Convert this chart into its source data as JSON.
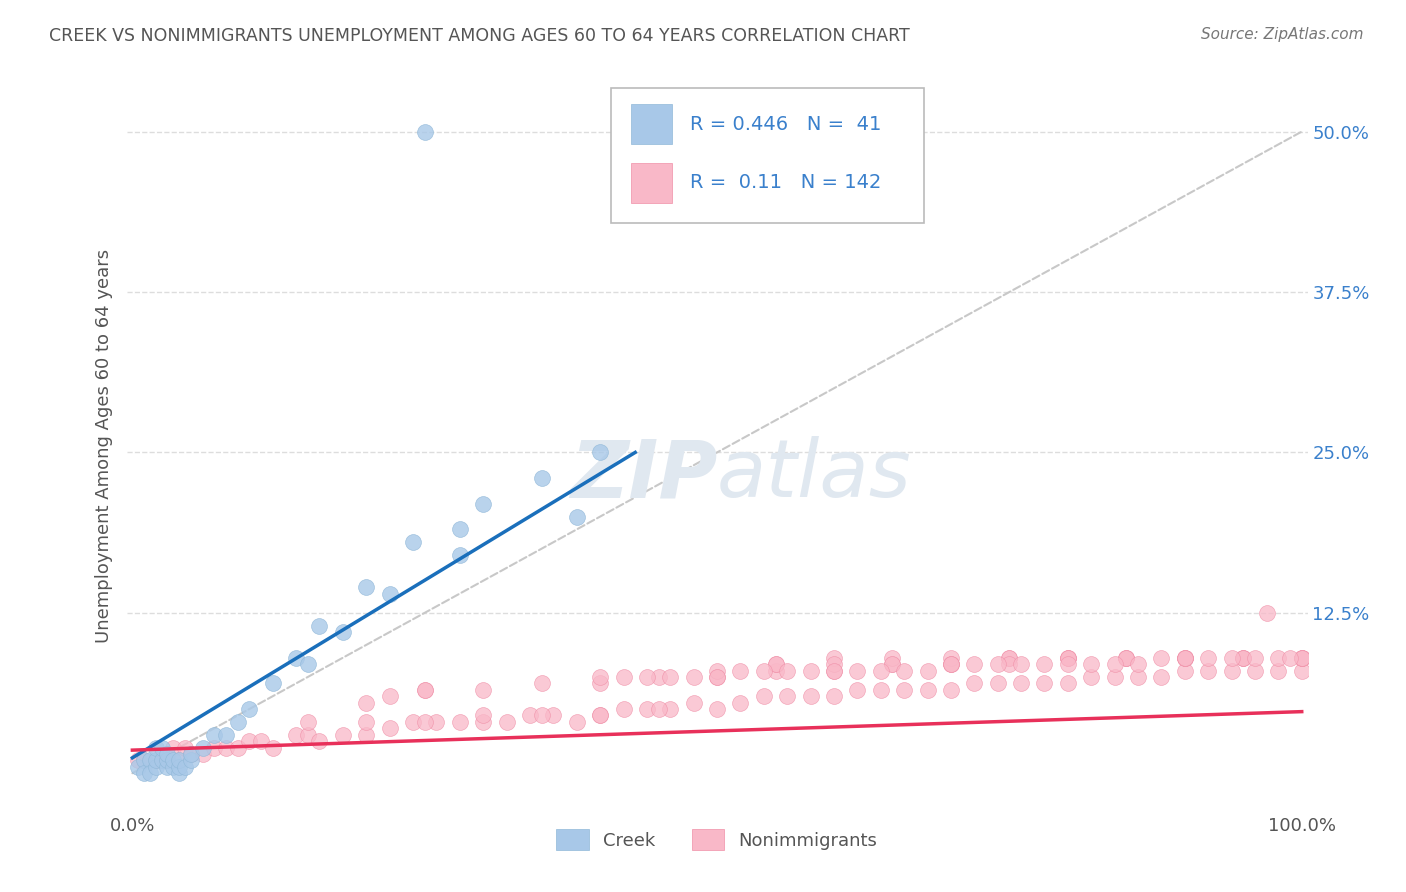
{
  "title": "CREEK VS NONIMMIGRANTS UNEMPLOYMENT AMONG AGES 60 TO 64 YEARS CORRELATION CHART",
  "source": "Source: ZipAtlas.com",
  "ylabel": "Unemployment Among Ages 60 to 64 years",
  "right_yticklabels": [
    "",
    "12.5%",
    "25.0%",
    "37.5%",
    "50.0%"
  ],
  "right_ytick_vals": [
    0.0,
    0.125,
    0.25,
    0.375,
    0.5
  ],
  "creek_R": 0.446,
  "creek_N": 41,
  "nonimm_R": 0.11,
  "nonimm_N": 142,
  "creek_color": "#a8c8e8",
  "creek_edge_color": "#90b8d8",
  "creek_line_color": "#1a6fbb",
  "nonimm_color": "#f9b8c8",
  "nonimm_edge_color": "#f090a8",
  "nonimm_line_color": "#e8305a",
  "ref_line_color": "#c8c8c8",
  "legend_text_color": "#3a80cc",
  "legend_label_color": "#333333",
  "title_color": "#555555",
  "source_color": "#777777",
  "grid_color": "#dddddd",
  "background_color": "#ffffff",
  "watermark_color": "#e0e8f0",
  "xlim": [
    -0.005,
    1.005
  ],
  "ylim": [
    -0.03,
    0.54
  ],
  "creek_line_x": [
    0.0,
    0.43
  ],
  "creek_line_y": [
    0.012,
    0.25
  ],
  "nonimm_line_x": [
    0.0,
    1.0
  ],
  "nonimm_line_y": [
    0.018,
    0.048
  ],
  "ref_line_x": [
    0.0,
    1.0
  ],
  "ref_line_y": [
    0.0,
    0.5
  ],
  "creek_x": [
    0.005,
    0.01,
    0.01,
    0.015,
    0.015,
    0.02,
    0.02,
    0.02,
    0.025,
    0.025,
    0.03,
    0.03,
    0.03,
    0.035,
    0.035,
    0.04,
    0.04,
    0.04,
    0.045,
    0.05,
    0.05,
    0.06,
    0.07,
    0.08,
    0.09,
    0.1,
    0.12,
    0.14,
    0.16,
    0.2,
    0.24,
    0.28,
    0.3,
    0.35,
    0.38,
    0.4,
    0.28,
    0.22,
    0.18,
    0.15,
    0.25
  ],
  "creek_y": [
    0.005,
    0.01,
    0.0,
    0.01,
    0.0,
    0.005,
    0.01,
    0.02,
    0.01,
    0.02,
    0.005,
    0.01,
    0.015,
    0.005,
    0.01,
    0.0,
    0.005,
    0.01,
    0.005,
    0.01,
    0.015,
    0.02,
    0.03,
    0.03,
    0.04,
    0.05,
    0.07,
    0.09,
    0.115,
    0.145,
    0.18,
    0.19,
    0.21,
    0.23,
    0.2,
    0.25,
    0.17,
    0.14,
    0.11,
    0.085,
    0.5
  ],
  "nonimm_x": [
    0.005,
    0.01,
    0.02,
    0.03,
    0.035,
    0.04,
    0.045,
    0.05,
    0.06,
    0.07,
    0.08,
    0.09,
    0.1,
    0.11,
    0.12,
    0.14,
    0.15,
    0.16,
    0.18,
    0.2,
    0.22,
    0.24,
    0.26,
    0.28,
    0.3,
    0.32,
    0.34,
    0.36,
    0.38,
    0.4,
    0.42,
    0.44,
    0.46,
    0.48,
    0.5,
    0.52,
    0.54,
    0.56,
    0.58,
    0.6,
    0.62,
    0.64,
    0.66,
    0.68,
    0.7,
    0.72,
    0.74,
    0.76,
    0.78,
    0.8,
    0.82,
    0.84,
    0.86,
    0.88,
    0.9,
    0.92,
    0.94,
    0.96,
    0.98,
    1.0,
    0.25,
    0.3,
    0.35,
    0.4,
    0.45,
    0.5,
    0.55,
    0.6,
    0.65,
    0.7,
    0.75,
    0.8,
    0.85,
    0.9,
    0.95,
    1.0,
    0.15,
    0.2,
    0.25,
    0.3,
    0.35,
    0.4,
    0.45,
    0.2,
    0.22,
    0.25,
    0.55,
    0.6,
    0.65,
    0.7,
    0.75,
    0.8,
    0.85,
    0.9,
    0.95,
    1.0,
    0.5,
    0.55,
    0.6,
    0.65,
    0.7,
    0.75,
    0.8,
    0.85,
    0.9,
    0.95,
    1.0,
    0.4,
    0.42,
    0.44,
    0.46,
    0.48,
    0.5,
    0.52,
    0.54,
    0.56,
    0.58,
    0.6,
    0.62,
    0.64,
    0.66,
    0.68,
    0.7,
    0.72,
    0.74,
    0.76,
    0.78,
    0.8,
    0.82,
    0.84,
    0.86,
    0.88,
    0.9,
    0.92,
    0.94,
    0.96,
    0.98,
    1.0,
    0.97,
    0.99
  ],
  "nonimm_y": [
    0.01,
    0.01,
    0.01,
    0.01,
    0.02,
    0.01,
    0.02,
    0.015,
    0.015,
    0.02,
    0.02,
    0.02,
    0.025,
    0.025,
    0.02,
    0.03,
    0.03,
    0.025,
    0.03,
    0.03,
    0.035,
    0.04,
    0.04,
    0.04,
    0.04,
    0.04,
    0.045,
    0.045,
    0.04,
    0.045,
    0.05,
    0.05,
    0.05,
    0.055,
    0.05,
    0.055,
    0.06,
    0.06,
    0.06,
    0.06,
    0.065,
    0.065,
    0.065,
    0.065,
    0.065,
    0.07,
    0.07,
    0.07,
    0.07,
    0.07,
    0.075,
    0.075,
    0.075,
    0.075,
    0.08,
    0.08,
    0.08,
    0.08,
    0.08,
    0.08,
    0.065,
    0.065,
    0.07,
    0.07,
    0.075,
    0.075,
    0.08,
    0.08,
    0.085,
    0.085,
    0.09,
    0.09,
    0.09,
    0.09,
    0.09,
    0.09,
    0.04,
    0.04,
    0.04,
    0.045,
    0.045,
    0.045,
    0.05,
    0.055,
    0.06,
    0.065,
    0.085,
    0.09,
    0.09,
    0.09,
    0.09,
    0.09,
    0.09,
    0.09,
    0.09,
    0.09,
    0.08,
    0.085,
    0.085,
    0.085,
    0.085,
    0.085,
    0.09,
    0.09,
    0.09,
    0.09,
    0.09,
    0.075,
    0.075,
    0.075,
    0.075,
    0.075,
    0.075,
    0.08,
    0.08,
    0.08,
    0.08,
    0.08,
    0.08,
    0.08,
    0.08,
    0.08,
    0.085,
    0.085,
    0.085,
    0.085,
    0.085,
    0.085,
    0.085,
    0.085,
    0.085,
    0.09,
    0.09,
    0.09,
    0.09,
    0.09,
    0.09,
    0.09,
    0.125,
    0.09
  ]
}
